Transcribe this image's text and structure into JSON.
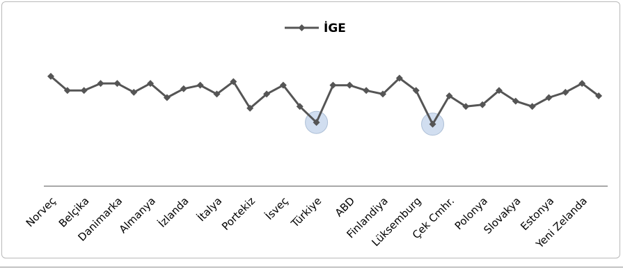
{
  "chart_data": {
    "type": "line",
    "series": [
      {
        "name": "İGE",
        "values": [
          6.2,
          5.4,
          5.4,
          5.8,
          5.8,
          5.3,
          5.8,
          5.0,
          5.5,
          5.7,
          5.2,
          5.9,
          4.4,
          5.2,
          5.7,
          4.5,
          3.6,
          5.7,
          5.7,
          5.4,
          5.2,
          6.1,
          5.4,
          3.5,
          5.1,
          4.5,
          4.6,
          5.4,
          4.8,
          4.5,
          5.0,
          5.3,
          5.8,
          5.1
        ]
      }
    ],
    "tick_labels": [
      "Norveç",
      "Belçika",
      "Danimarka",
      "Almanya",
      "İzlanda",
      "İtalya",
      "Portekiz",
      "İsveç",
      "Türkiye",
      "ABD",
      "Finlandiya",
      "Lüksemburg",
      "Çek Cmhr.",
      "Polonya",
      "Slovakya",
      "Estonya",
      "Yeni Zelanda"
    ],
    "highlighted_points": [
      16,
      23
    ],
    "ylim": [
      0,
      10
    ],
    "grid": false,
    "legend_position": "top",
    "colors": {
      "line": "#555555",
      "marker": "#555555",
      "highlight": "#c9d9ee",
      "axis": "#8c8c8c"
    }
  }
}
